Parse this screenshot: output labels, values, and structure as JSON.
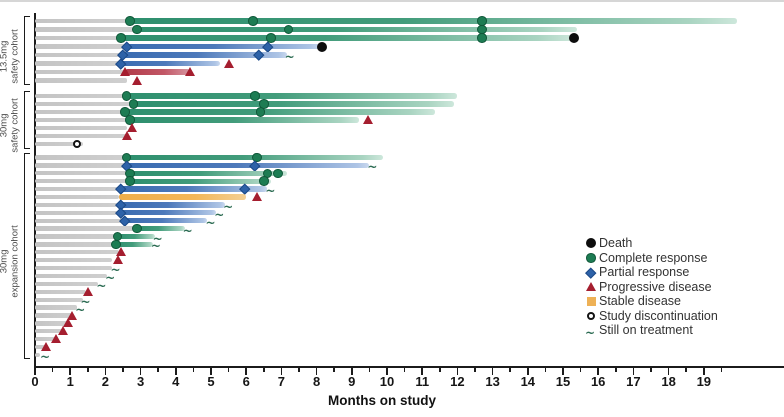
{
  "colors": {
    "complete_response": "#1d7c53",
    "partial_response": "#2d62a8",
    "progressive_disease": "#a51e2f",
    "stable_disease": "#eeb156",
    "death": "#0d0d0d",
    "bar_green": "#2e8f6e",
    "bar_blue": "#3a6cb1",
    "bar_red": "#b23b49",
    "bar_orange": "#efae4a",
    "bar_gray": "#c9c9c9",
    "still_on_treatment": "#2b6b52"
  },
  "legend": {
    "items": [
      {
        "label": "Death",
        "marker": "death"
      },
      {
        "label": "Complete response",
        "marker": "cr"
      },
      {
        "label": "Partial response",
        "marker": "pr"
      },
      {
        "label": "Progressive disease",
        "marker": "pd"
      },
      {
        "label": "Stable disease",
        "marker": "sd"
      },
      {
        "label": "Study discontinuation",
        "marker": "disc"
      },
      {
        "label": "Still on treatment",
        "marker": "ontx"
      }
    ]
  },
  "chart_data": {
    "type": "swimmer",
    "xlabel": "Months on study",
    "x_ticks": [
      0,
      1,
      2,
      3,
      4,
      5,
      6,
      7,
      8,
      9,
      10,
      11,
      12,
      13,
      14,
      15,
      16,
      17,
      18,
      19
    ],
    "x_minor_step": 0.5,
    "xlim": [
      0,
      21.3
    ],
    "x_unit": "months",
    "marker_legend": {
      "death": "black circle",
      "cr": "green circle",
      "pr": "blue diamond",
      "pd": "red triangle",
      "sd": "orange square",
      "disc": "open circle",
      "ontx": "green squiggle arrow"
    },
    "cohorts": [
      {
        "label1": "13.5mg",
        "label2": "safety cohort",
        "rows": [
          {
            "track": "green",
            "lead": 2.7,
            "end": 19.95,
            "markers": [
              {
                "type": "cr",
                "x": 2.7
              },
              {
                "type": "cr",
                "x": 6.2
              },
              {
                "type": "cr",
                "x": 12.7
              }
            ]
          },
          {
            "track": "green",
            "lead": 2.9,
            "end": 15.4,
            "markers": [
              {
                "type": "cr",
                "x": 2.9
              },
              {
                "type": "cr",
                "x": 7.2
              },
              {
                "type": "cr",
                "x": 12.7
              }
            ]
          },
          {
            "track": "green",
            "lead": 2.45,
            "end": 15.3,
            "markers": [
              {
                "type": "cr",
                "x": 2.45
              },
              {
                "type": "cr",
                "x": 6.7
              },
              {
                "type": "cr",
                "x": 12.7
              },
              {
                "type": "death",
                "x": 15.3
              }
            ]
          },
          {
            "track": "blue",
            "lead": 2.6,
            "end": 8.1,
            "markers": [
              {
                "type": "pr",
                "x": 2.6
              },
              {
                "type": "pr",
                "x": 6.6
              },
              {
                "type": "death",
                "x": 8.15
              }
            ]
          },
          {
            "track": "blue",
            "lead": 2.5,
            "end": 7.15,
            "markers": [
              {
                "type": "pr",
                "x": 2.5
              },
              {
                "type": "pr",
                "x": 6.35
              },
              {
                "type": "ontx",
                "x": 7.15
              }
            ]
          },
          {
            "track": "blue",
            "lead": 2.45,
            "end": 5.25,
            "markers": [
              {
                "type": "pr",
                "x": 2.45
              },
              {
                "type": "pd",
                "x": 5.5
              }
            ]
          },
          {
            "track": "red",
            "lead": 2.55,
            "end": 4.4,
            "markers": [
              {
                "type": "pd",
                "x": 2.55
              },
              {
                "type": "pd",
                "x": 4.4
              }
            ]
          },
          {
            "track": "none",
            "lead": 2.6,
            "end": 2.6,
            "markers": [
              {
                "type": "pd",
                "x": 2.9
              }
            ]
          }
        ]
      },
      {
        "label1": "30mg",
        "label2": "safety cohort",
        "rows": [
          {
            "track": "green",
            "lead": 2.6,
            "end": 12.0,
            "markers": [
              {
                "type": "cr",
                "x": 2.6
              },
              {
                "type": "cr",
                "x": 6.25
              }
            ]
          },
          {
            "track": "green",
            "lead": 2.8,
            "end": 11.9,
            "markers": [
              {
                "type": "cr",
                "x": 2.8
              },
              {
                "type": "cr",
                "x": 6.5
              }
            ]
          },
          {
            "track": "green",
            "lead": 2.55,
            "end": 11.35,
            "markers": [
              {
                "type": "cr",
                "x": 2.55
              },
              {
                "type": "cr",
                "x": 6.4
              }
            ]
          },
          {
            "track": "green",
            "lead": 2.7,
            "end": 9.2,
            "markers": [
              {
                "type": "cr",
                "x": 2.7
              },
              {
                "type": "pd",
                "x": 9.45
              }
            ]
          },
          {
            "track": "none",
            "lead": 2.6,
            "end": 2.6,
            "markers": [
              {
                "type": "pd",
                "x": 2.75
              }
            ]
          },
          {
            "track": "none",
            "lead": 2.6,
            "end": 2.6,
            "markers": [
              {
                "type": "pd",
                "x": 2.6
              }
            ]
          },
          {
            "track": "none",
            "lead": 1.35,
            "end": 1.35,
            "markers": [
              {
                "type": "disc",
                "x": 1.2
              }
            ]
          }
        ]
      },
      {
        "label1": "30mg",
        "label2": "expansion cohort",
        "rows": [
          {
            "track": "green",
            "lead": 2.6,
            "end": 9.9,
            "markers": [
              {
                "type": "cr",
                "x": 2.6
              },
              {
                "type": "cr",
                "x": 6.3
              }
            ]
          },
          {
            "track": "blue",
            "lead": 2.6,
            "end": 9.5,
            "markers": [
              {
                "type": "pr",
                "x": 2.6
              },
              {
                "type": "pr",
                "x": 6.25
              },
              {
                "type": "ontx",
                "x": 9.5
              }
            ]
          },
          {
            "track": "green",
            "lead": 2.7,
            "end": 7.15,
            "markers": [
              {
                "type": "cr",
                "x": 2.7
              },
              {
                "type": "cr",
                "x": 6.6
              },
              {
                "type": "cr",
                "x": 6.9
              }
            ]
          },
          {
            "track": "green",
            "lead": 2.7,
            "end": 6.7,
            "markers": [
              {
                "type": "cr",
                "x": 2.7
              },
              {
                "type": "cr",
                "x": 6.5
              }
            ]
          },
          {
            "track": "blue",
            "lead": 2.45,
            "end": 6.6,
            "markers": [
              {
                "type": "pr",
                "x": 2.45
              },
              {
                "type": "pr",
                "x": 5.95
              },
              {
                "type": "ontx",
                "x": 6.6
              }
            ]
          },
          {
            "track": "orange",
            "lead": 2.4,
            "end": 6.0,
            "markers": [
              {
                "type": "pd",
                "x": 6.3
              }
            ]
          },
          {
            "track": "blue",
            "lead": 2.45,
            "end": 5.4,
            "markers": [
              {
                "type": "pr",
                "x": 2.45
              },
              {
                "type": "ontx",
                "x": 5.4
              }
            ]
          },
          {
            "track": "blue",
            "lead": 2.45,
            "end": 5.15,
            "markers": [
              {
                "type": "pr",
                "x": 2.45
              },
              {
                "type": "ontx",
                "x": 5.15
              }
            ]
          },
          {
            "track": "blue",
            "lead": 2.55,
            "end": 4.9,
            "markers": [
              {
                "type": "pr",
                "x": 2.55
              },
              {
                "type": "ontx",
                "x": 4.9
              }
            ]
          },
          {
            "track": "green",
            "lead": 2.9,
            "end": 4.25,
            "markers": [
              {
                "type": "cr",
                "x": 2.9
              },
              {
                "type": "ontx",
                "x": 4.25
              }
            ]
          },
          {
            "track": "green",
            "lead": 2.35,
            "end": 3.4,
            "markers": [
              {
                "type": "cr",
                "x": 2.35
              },
              {
                "type": "ontx",
                "x": 3.4
              }
            ]
          },
          {
            "track": "green",
            "lead": 2.3,
            "end": 3.35,
            "markers": [
              {
                "type": "cr",
                "x": 2.3
              },
              {
                "type": "ontx",
                "x": 3.35
              }
            ]
          },
          {
            "track": "none",
            "lead": 2.4,
            "end": 2.4,
            "markers": [
              {
                "type": "pd",
                "x": 2.45
              }
            ]
          },
          {
            "track": "none",
            "lead": 2.2,
            "end": 2.2,
            "markers": [
              {
                "type": "pd",
                "x": 2.35
              }
            ]
          },
          {
            "track": "none",
            "lead": 2.2,
            "end": 2.2,
            "markers": [
              {
                "type": "ontx",
                "x": 2.2
              }
            ]
          },
          {
            "track": "none",
            "lead": 2.05,
            "end": 2.05,
            "markers": [
              {
                "type": "ontx",
                "x": 2.05
              }
            ]
          },
          {
            "track": "none",
            "lead": 1.8,
            "end": 1.8,
            "markers": [
              {
                "type": "ontx",
                "x": 1.8
              }
            ]
          },
          {
            "track": "none",
            "lead": 1.45,
            "end": 1.45,
            "markers": [
              {
                "type": "pd",
                "x": 1.5
              }
            ]
          },
          {
            "track": "none",
            "lead": 1.35,
            "end": 1.35,
            "markers": [
              {
                "type": "ontx",
                "x": 1.35
              }
            ]
          },
          {
            "track": "none",
            "lead": 1.2,
            "end": 1.2,
            "markers": [
              {
                "type": "ontx",
                "x": 1.2
              }
            ]
          },
          {
            "track": "none",
            "lead": 1.05,
            "end": 1.05,
            "markers": [
              {
                "type": "pd",
                "x": 1.05
              }
            ]
          },
          {
            "track": "none",
            "lead": 0.95,
            "end": 0.95,
            "markers": [
              {
                "type": "pd",
                "x": 0.95
              }
            ]
          },
          {
            "track": "none",
            "lead": 0.8,
            "end": 0.8,
            "markers": [
              {
                "type": "pd",
                "x": 0.8
              }
            ]
          },
          {
            "track": "none",
            "lead": 0.6,
            "end": 0.6,
            "markers": [
              {
                "type": "pd",
                "x": 0.6
              }
            ]
          },
          {
            "track": "none",
            "lead": 0.3,
            "end": 0.3,
            "markers": [
              {
                "type": "pd",
                "x": 0.3
              }
            ]
          },
          {
            "track": "none",
            "lead": 0.15,
            "end": 0.15,
            "markers": [
              {
                "type": "ontx",
                "x": 0.2
              }
            ]
          }
        ]
      }
    ]
  }
}
